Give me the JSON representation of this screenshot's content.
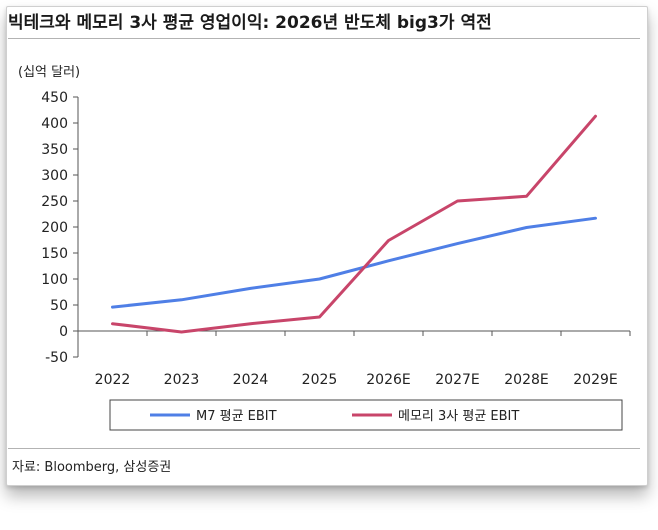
{
  "title": "빅테크와 메모리 3사 평균 영업이익: 2026년 반도체 big3가 역전",
  "source": "자료: Bloomberg, 삼성증권",
  "colors": {
    "m7": "#4f7fe6",
    "memory": "#c8456a"
  },
  "chart_data": {
    "type": "line",
    "unit_label": "(십억 달러)",
    "categories": [
      "2022",
      "2023",
      "2024",
      "2025",
      "2026E",
      "2027E",
      "2028E",
      "2029E"
    ],
    "ylim": [
      -50,
      450
    ],
    "yticks": [
      -50,
      0,
      50,
      100,
      150,
      200,
      250,
      300,
      350,
      400,
      450
    ],
    "ytick_labels": [
      "-50",
      "0",
      "50",
      "100",
      "150",
      "200",
      "250",
      "300",
      "350",
      "400",
      "450"
    ],
    "grid": false,
    "legend_position": "bottom",
    "series": [
      {
        "name": "M7 평균 EBIT",
        "color": "#4f7fe6",
        "values": [
          46,
          60,
          82,
          100,
          135,
          168,
          199,
          217
        ]
      },
      {
        "name": "메모리 3사 평균 EBIT",
        "color": "#c8456a",
        "values": [
          14,
          -2,
          14,
          27,
          174,
          250,
          259,
          413
        ]
      }
    ]
  }
}
